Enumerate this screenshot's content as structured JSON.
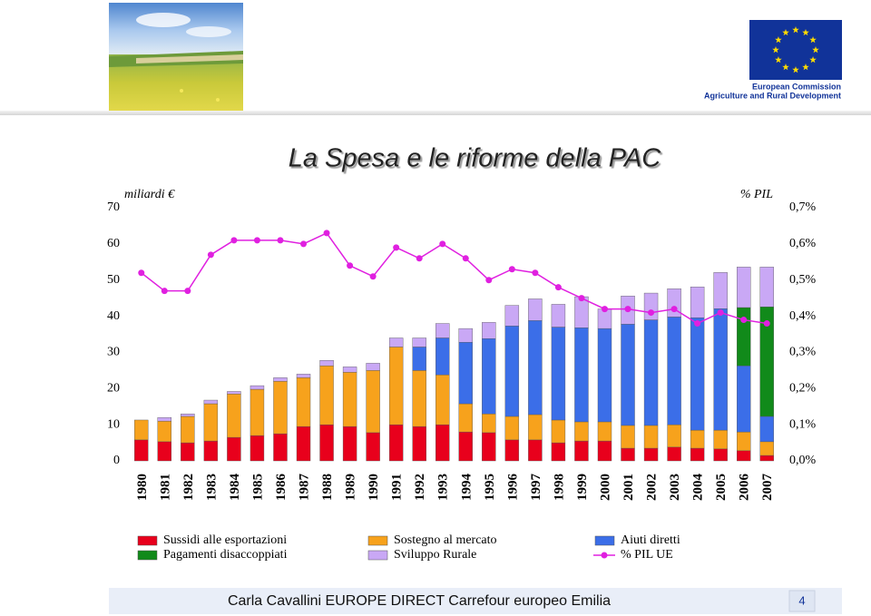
{
  "header": {
    "org": "European Commission",
    "dept": "Agriculture and Rural Development"
  },
  "chart_data": {
    "type": "bar",
    "stacked": true,
    "title": "La Spesa e le riforme della PAC",
    "y_label": "miliardi €",
    "y2_label": "% PIL",
    "categories": [
      "1980",
      "1981",
      "1982",
      "1983",
      "1984",
      "1985",
      "1986",
      "1987",
      "1988",
      "1989",
      "1990",
      "1991",
      "1992",
      "1993",
      "1994",
      "1995",
      "1996",
      "1997",
      "1998",
      "1999",
      "2000",
      "2001",
      "2002",
      "2003",
      "2004",
      "2005",
      "2006",
      "2007"
    ],
    "ylim": [
      0,
      70
    ],
    "yticks": [
      0,
      10,
      20,
      30,
      40,
      50,
      60,
      70
    ],
    "y2lim": [
      0,
      0.7
    ],
    "y2ticks": [
      {
        "value": 0,
        "label": "0,0%"
      },
      {
        "value": 0.1,
        "label": "0,1%"
      },
      {
        "value": 0.2,
        "label": "0,2%"
      },
      {
        "value": 0.3,
        "label": "0,3%"
      },
      {
        "value": 0.4,
        "label": "0,4%"
      },
      {
        "value": 0.5,
        "label": "0,5%"
      },
      {
        "value": 0.6,
        "label": "0,6%"
      },
      {
        "value": 0.7,
        "label": "0,7%"
      }
    ],
    "series": [
      {
        "name": "Sussidi alle esportazioni",
        "color": "#e8001c",
        "values": [
          5.8,
          5.3,
          5.0,
          5.5,
          6.5,
          7.0,
          7.5,
          9.5,
          10,
          9.5,
          7.8,
          10,
          9.5,
          10,
          8,
          7.8,
          5.8,
          5.8,
          5,
          5.5,
          5.5,
          3.5,
          3.5,
          3.8,
          3.5,
          3.3,
          2.8,
          1.5
        ]
      },
      {
        "name": "Sostegno al mercato",
        "color": "#f7a21c",
        "values": [
          5.5,
          5.7,
          7.3,
          10.3,
          12,
          12.8,
          14.5,
          13.5,
          16.3,
          15,
          17.2,
          21.5,
          15.5,
          13.8,
          7.8,
          5.2,
          6.5,
          7,
          6.3,
          5.3,
          5.3,
          6.3,
          6.3,
          6.2,
          5,
          5.2,
          5.2,
          3.8
        ]
      },
      {
        "name": "Aiuti diretti",
        "color": "#3b6ee8",
        "values": [
          null,
          null,
          null,
          null,
          null,
          null,
          null,
          null,
          null,
          null,
          null,
          null,
          6.5,
          10.2,
          17,
          20.8,
          25,
          26,
          25.7,
          26,
          25.8,
          28,
          29.2,
          29.8,
          31.1,
          33.6,
          18.3,
          7
        ]
      },
      {
        "name": "Pagamenti disaccoppiati",
        "color": "#118a1a",
        "values": [
          null,
          null,
          null,
          null,
          null,
          null,
          null,
          null,
          null,
          null,
          null,
          null,
          null,
          null,
          null,
          null,
          null,
          null,
          null,
          null,
          null,
          null,
          null,
          null,
          null,
          null,
          16.1,
          30.3
        ]
      },
      {
        "name": "Sviluppo Rurale",
        "color": "#c9a8f5",
        "values": [
          null,
          1.0,
          0.7,
          1.0,
          0.7,
          1.0,
          1.0,
          1.0,
          1.5,
          1.5,
          2,
          2.5,
          2.5,
          4,
          3.8,
          4.5,
          5.7,
          6,
          6.3,
          8.6,
          5.4,
          7.8,
          7.4,
          7.8,
          8.5,
          10,
          11.2,
          11
        ]
      },
      {
        "name": "% PIL UE",
        "color": "#e020e0",
        "axis": "y2",
        "type": "line",
        "values": [
          0.52,
          0.47,
          0.47,
          0.57,
          0.61,
          0.61,
          0.61,
          0.6,
          0.63,
          0.54,
          0.51,
          0.59,
          0.56,
          0.6,
          0.56,
          0.5,
          0.53,
          0.52,
          0.48,
          0.45,
          0.42,
          0.42,
          0.41,
          0.42,
          0.38,
          0.41,
          0.39,
          0.38
        ]
      }
    ]
  },
  "footer": {
    "text": "Carla Cavallini  EUROPE DIRECT  Carrefour europeo Emilia",
    "page": "4"
  }
}
